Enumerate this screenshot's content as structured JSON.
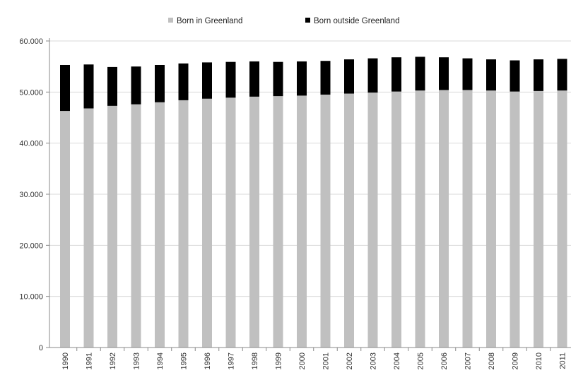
{
  "chart_data": {
    "type": "bar",
    "stacked": true,
    "title": "",
    "xlabel": "",
    "ylabel": "",
    "ylim": [
      0,
      60000
    ],
    "yticks": [
      0,
      10000,
      20000,
      30000,
      40000,
      50000,
      60000
    ],
    "ytick_labels": [
      "0",
      "10.000",
      "20.000",
      "30.000",
      "40.000",
      "50.000",
      "60.000"
    ],
    "grid": true,
    "legend_position": "top",
    "categories": [
      "1990",
      "1991",
      "1992",
      "1993",
      "1994",
      "1995",
      "1996",
      "1997",
      "1998",
      "1999",
      "2000",
      "2001",
      "2002",
      "2003",
      "2004",
      "2005",
      "2006",
      "2007",
      "2008",
      "2009",
      "2010",
      "2011"
    ],
    "series": [
      {
        "name": "Born in Greenland",
        "color": "#c0c0c0",
        "values": [
          46300,
          46800,
          47300,
          47600,
          48000,
          48400,
          48700,
          48900,
          49100,
          49200,
          49300,
          49500,
          49700,
          49900,
          50100,
          50300,
          50400,
          50400,
          50300,
          50100,
          50200,
          50300
        ]
      },
      {
        "name": "Born outside Greenland",
        "color": "#000000",
        "values": [
          9000,
          8600,
          7600,
          7400,
          7300,
          7200,
          7100,
          7000,
          6900,
          6700,
          6700,
          6600,
          6700,
          6700,
          6700,
          6600,
          6400,
          6200,
          6100,
          6100,
          6200,
          6200
        ]
      }
    ]
  }
}
